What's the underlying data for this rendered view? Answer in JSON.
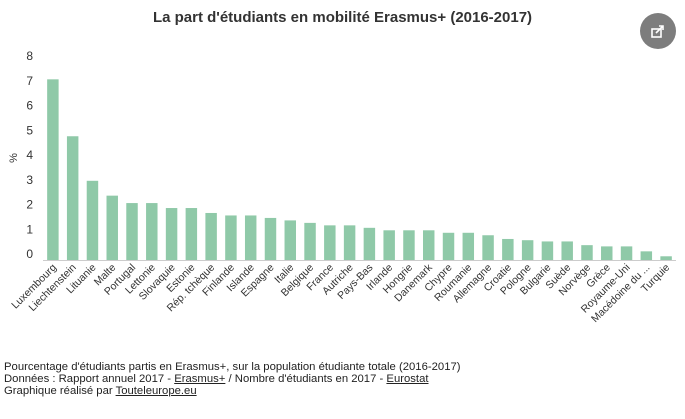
{
  "chart_data": {
    "type": "bar",
    "title": "La part d'étudiants en mobilité Erasmus+ (2016-2017)",
    "ylabel": "%",
    "ylim": [
      0,
      8
    ],
    "yticks": [
      0,
      1,
      2,
      3,
      4,
      5,
      6,
      7,
      8
    ],
    "grid": false,
    "bar_color": "#8fc9a8",
    "categories": [
      "Luxembourg",
      "Liechtenstein",
      "Lituanie",
      "Malte",
      "Portugal",
      "Lettonie",
      "Slovaquie",
      "Estonie",
      "Rép. tchèque",
      "Finlande",
      "Islande",
      "Espagne",
      "Italie",
      "Belgique",
      "France",
      "Autriche",
      "Pays-Bas",
      "Irlande",
      "Hongrie",
      "Danemark",
      "Chypre",
      "Roumanie",
      "Allemagne",
      "Croatie",
      "Pologne",
      "Bulgarie",
      "Suède",
      "Norvège",
      "Grèce",
      "Royaume-Uni",
      "Macédoine du ...",
      "Turquie"
    ],
    "values": [
      7.3,
      5.0,
      3.2,
      2.6,
      2.3,
      2.3,
      2.1,
      2.1,
      1.9,
      1.8,
      1.8,
      1.7,
      1.6,
      1.5,
      1.4,
      1.4,
      1.3,
      1.2,
      1.2,
      1.2,
      1.1,
      1.1,
      1.0,
      0.85,
      0.8,
      0.75,
      0.75,
      0.6,
      0.55,
      0.55,
      0.35,
      0.15
    ]
  },
  "share": {
    "icon": "share-icon"
  },
  "footer": {
    "line1": "Pourcentage d'étudiants partis en Erasmus+, sur la population étudiante totale (2016-2017)",
    "line2_prefix": "Données : Rapport annuel 2017 - ",
    "line2_link1": "Erasmus+",
    "line2_mid": " / Nombre d'étudiants en 2017 - ",
    "line2_link2": "Eurostat",
    "line3_prefix": "Graphique réalisé par ",
    "line3_link": "Touteleurope.eu"
  }
}
